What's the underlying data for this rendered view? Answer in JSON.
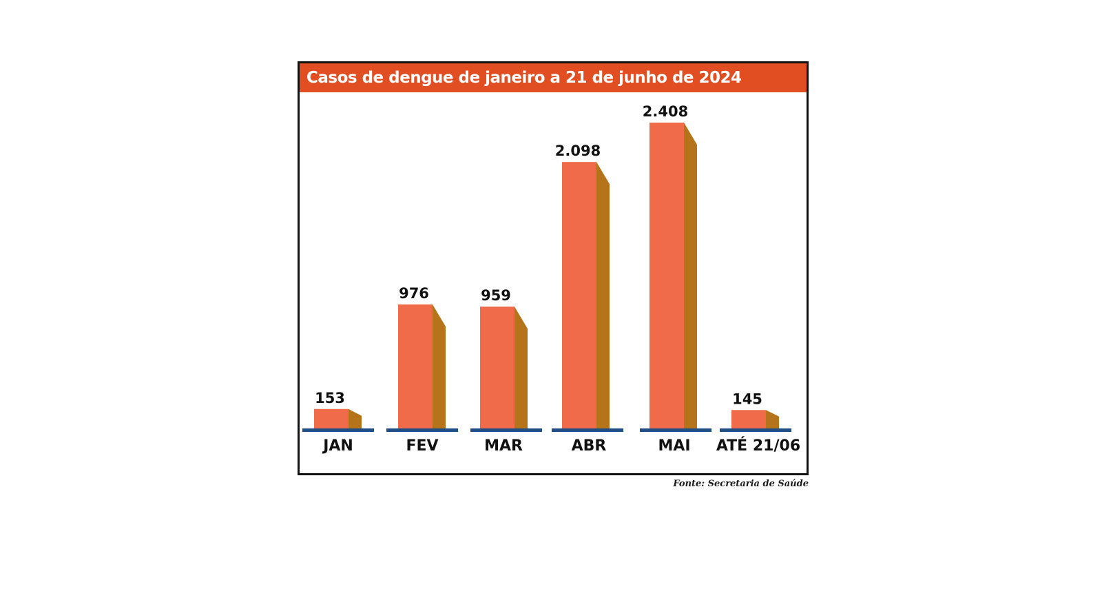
{
  "chart_data": {
    "type": "bar",
    "title": "Casos de dengue de janeiro a 21 de junho de 2024",
    "categories": [
      "JAN",
      "FEV",
      "MAR",
      "ABR",
      "MAI",
      "ATÉ 21/06"
    ],
    "values": [
      153,
      976,
      959,
      2098,
      2408,
      145
    ],
    "value_labels": [
      "153",
      "976",
      "959",
      "2.098",
      "2.408",
      "145"
    ],
    "xlabel": "",
    "ylabel": "",
    "ylim": [
      0,
      2408
    ],
    "grid": false,
    "legend": "none",
    "source": "Fonte: Secretaria de Saúde",
    "colors": {
      "title_bar": "#e04e22",
      "bar_front": "#f06b4a",
      "bar_side": "#b5741a",
      "baseline": "#1f4f86",
      "text": "#111111"
    }
  }
}
